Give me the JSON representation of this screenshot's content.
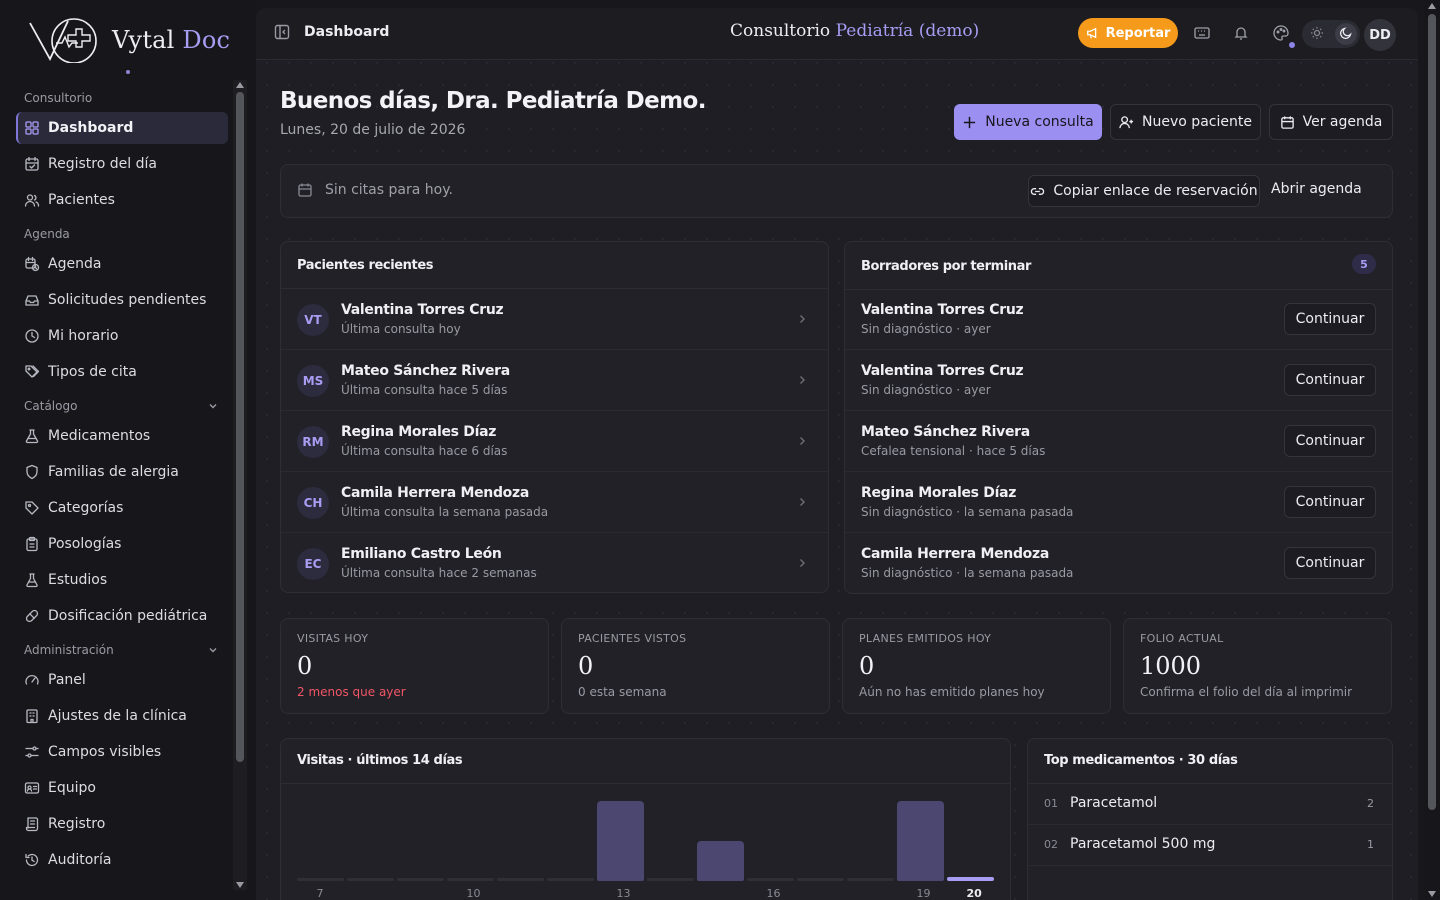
{
  "brand": {
    "name_part1": "Vytal",
    "name_part2": "Doc"
  },
  "sidebar": {
    "groups": [
      {
        "label": "Consultorio",
        "items": [
          {
            "label": "Dashboard",
            "icon": "grid-icon",
            "active": true
          },
          {
            "label": "Registro del día",
            "icon": "calendar-check-icon"
          },
          {
            "label": "Pacientes",
            "icon": "users-icon"
          }
        ]
      },
      {
        "label": "Agenda",
        "items": [
          {
            "label": "Agenda",
            "icon": "calendar-clock-icon"
          },
          {
            "label": "Solicitudes pendientes",
            "icon": "inbox-icon"
          },
          {
            "label": "Mi horario",
            "icon": "clock-icon"
          },
          {
            "label": "Tipos de cita",
            "icon": "tags-icon"
          }
        ]
      },
      {
        "label": "Catálogo",
        "collapsible": true,
        "items": [
          {
            "label": "Medicamentos",
            "icon": "flask-icon"
          },
          {
            "label": "Familias de alergia",
            "icon": "shield-icon"
          },
          {
            "label": "Categorías",
            "icon": "tag-icon"
          },
          {
            "label": "Posologías",
            "icon": "clipboard-icon"
          },
          {
            "label": "Estudios",
            "icon": "beaker-icon"
          },
          {
            "label": "Dosificación pediátrica",
            "icon": "pill-icon"
          }
        ]
      },
      {
        "label": "Administración",
        "collapsible": true,
        "items": [
          {
            "label": "Panel",
            "icon": "gauge-icon"
          },
          {
            "label": "Ajustes de la clínica",
            "icon": "building-icon"
          },
          {
            "label": "Campos visibles",
            "icon": "sliders-icon"
          },
          {
            "label": "Equipo",
            "icon": "id-card-icon"
          },
          {
            "label": "Registro",
            "icon": "scroll-icon"
          },
          {
            "label": "Auditoría",
            "icon": "history-icon"
          }
        ]
      }
    ]
  },
  "topbar": {
    "breadcrumb": "Dashboard",
    "clinic_prefix": "Consultorio",
    "clinic_name": "Pediatría (demo)",
    "report_label": "Reportar",
    "user_initials": "DD"
  },
  "header": {
    "greeting": "Buenos días, Dra. Pediatría Demo.",
    "date": "Lunes, 20 de julio de 2026",
    "new_consult": "Nueva consulta",
    "new_patient": "Nuevo paciente",
    "view_agenda": "Ver agenda"
  },
  "appointments": {
    "empty_text": "Sin citas para hoy.",
    "copy_link": "Copiar enlace de reservación",
    "open_agenda": "Abrir agenda"
  },
  "recent_patients": {
    "title": "Pacientes recientes",
    "rows": [
      {
        "initials": "VT",
        "name": "Valentina Torres Cruz",
        "sub": "Última consulta hoy"
      },
      {
        "initials": "MS",
        "name": "Mateo Sánchez Rivera",
        "sub": "Última consulta hace 5 días"
      },
      {
        "initials": "RM",
        "name": "Regina Morales Díaz",
        "sub": "Última consulta hace 6 días"
      },
      {
        "initials": "CH",
        "name": "Camila Herrera Mendoza",
        "sub": "Última consulta la semana pasada"
      },
      {
        "initials": "EC",
        "name": "Emiliano Castro León",
        "sub": "Última consulta hace 2 semanas"
      }
    ]
  },
  "drafts": {
    "title": "Borradores por terminar",
    "count": "5",
    "continue_label": "Continuar",
    "rows": [
      {
        "name": "Valentina Torres Cruz",
        "sub": "Sin diagnóstico · ayer"
      },
      {
        "name": "Valentina Torres Cruz",
        "sub": "Sin diagnóstico · ayer"
      },
      {
        "name": "Mateo Sánchez Rivera",
        "sub": "Cefalea tensional · hace 5 días"
      },
      {
        "name": "Regina Morales Díaz",
        "sub": "Sin diagnóstico · la semana pasada"
      },
      {
        "name": "Camila Herrera Mendoza",
        "sub": "Sin diagnóstico · la semana pasada"
      }
    ]
  },
  "stats": [
    {
      "label": "VISITAS HOY",
      "value": "0",
      "note": "2 menos que ayer",
      "note_alert": true
    },
    {
      "label": "PACIENTES VISTOS",
      "value": "0",
      "note": "0 esta semana",
      "note_alert": false
    },
    {
      "label": "PLANES EMITIDOS HOY",
      "value": "0",
      "note": "Aún no has emitido planes hoy",
      "note_alert": false
    },
    {
      "label": "FOLIO ACTUAL",
      "value": "1000",
      "note": "Confirma el folio del día al imprimir",
      "note_alert": false
    }
  ],
  "visits_chart": {
    "title": "Visitas · últimos 14 días"
  },
  "chart_data": {
    "type": "bar",
    "categories": [
      "7",
      "8",
      "9",
      "10",
      "11",
      "12",
      "13",
      "14",
      "15",
      "16",
      "17",
      "18",
      "19",
      "20"
    ],
    "tick_labels": [
      "7",
      "10",
      "13",
      "16",
      "19",
      "20"
    ],
    "values": [
      0,
      0,
      0,
      0,
      0,
      0,
      2,
      0,
      1,
      0,
      0,
      0,
      2,
      0
    ],
    "highlight_category": "20",
    "ylim": [
      0,
      2
    ],
    "grid": false,
    "xlabel": "",
    "ylabel": ""
  },
  "top_meds": {
    "title": "Top medicamentos · 30 días",
    "rows": [
      {
        "idx": "01",
        "name": "Paracetamol",
        "count": "2"
      },
      {
        "idx": "02",
        "name": "Paracetamol 500 mg",
        "count": "1"
      }
    ]
  },
  "colors": {
    "accent": "#9b90f2",
    "report": "#f59a1b",
    "alert": "#f25565",
    "bar": "#4c4770"
  }
}
